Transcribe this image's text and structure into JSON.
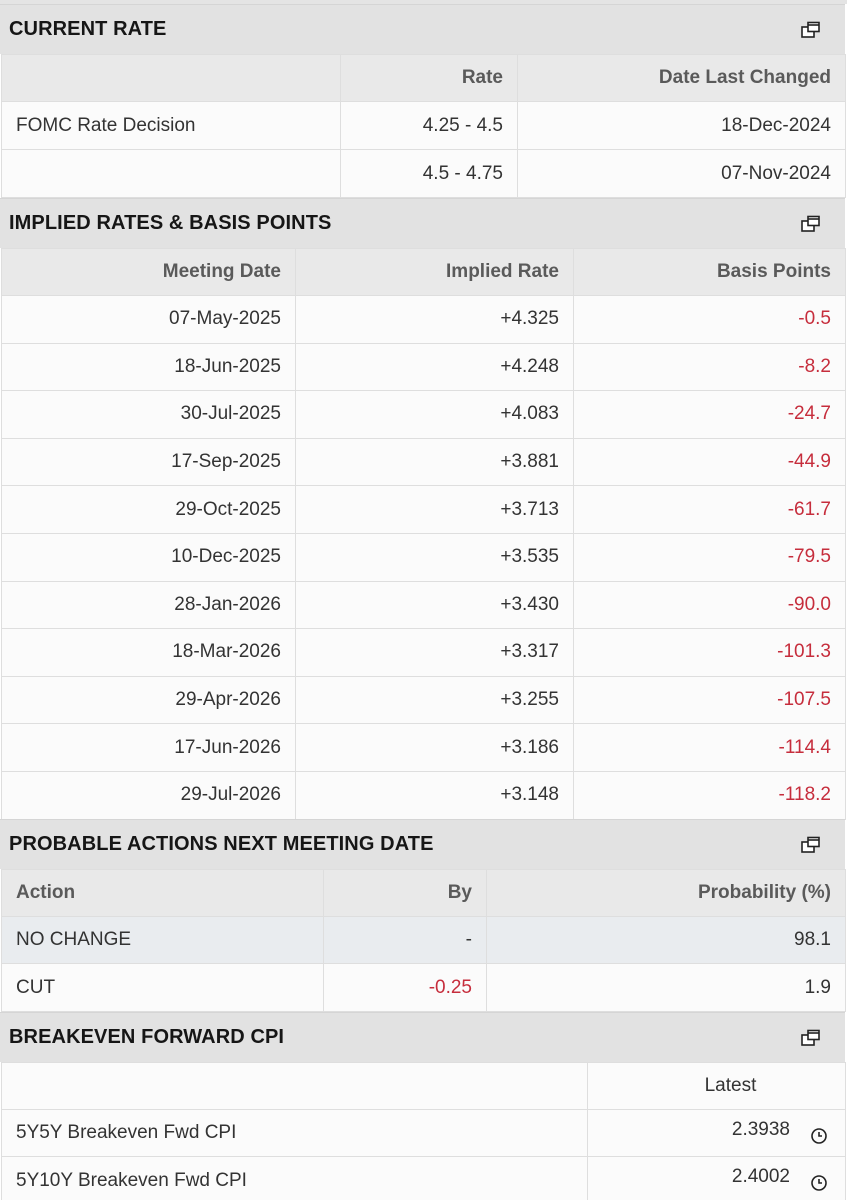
{
  "current_rate": {
    "title": "CURRENT RATE",
    "headers": [
      "",
      "Rate",
      "Date Last Changed"
    ],
    "rows": [
      {
        "label": "FOMC Rate Decision",
        "rate": "4.25 - 4.5",
        "date": "18-Dec-2024"
      },
      {
        "label": "",
        "rate": "4.5 - 4.75",
        "date": "07-Nov-2024"
      }
    ]
  },
  "implied_rates": {
    "title": "IMPLIED RATES & BASIS POINTS",
    "headers": [
      "Meeting Date",
      "Implied Rate",
      "Basis Points"
    ],
    "rows": [
      {
        "date": "07-May-2025",
        "rate": "+4.325",
        "bp": "-0.5"
      },
      {
        "date": "18-Jun-2025",
        "rate": "+4.248",
        "bp": "-8.2"
      },
      {
        "date": "30-Jul-2025",
        "rate": "+4.083",
        "bp": "-24.7"
      },
      {
        "date": "17-Sep-2025",
        "rate": "+3.881",
        "bp": "-44.9"
      },
      {
        "date": "29-Oct-2025",
        "rate": "+3.713",
        "bp": "-61.7"
      },
      {
        "date": "10-Dec-2025",
        "rate": "+3.535",
        "bp": "-79.5"
      },
      {
        "date": "28-Jan-2026",
        "rate": "+3.430",
        "bp": "-90.0"
      },
      {
        "date": "18-Mar-2026",
        "rate": "+3.317",
        "bp": "-101.3"
      },
      {
        "date": "29-Apr-2026",
        "rate": "+3.255",
        "bp": "-107.5"
      },
      {
        "date": "17-Jun-2026",
        "rate": "+3.186",
        "bp": "-114.4"
      },
      {
        "date": "29-Jul-2026",
        "rate": "+3.148",
        "bp": "-118.2"
      }
    ]
  },
  "probable_actions": {
    "title": "PROBABLE ACTIONS NEXT MEETING DATE",
    "headers": [
      "Action",
      "By",
      "Probability (%)"
    ],
    "rows": [
      {
        "action": "NO CHANGE",
        "by": "-",
        "prob": "98.1"
      },
      {
        "action": "CUT",
        "by": "-0.25",
        "prob": "1.9"
      }
    ]
  },
  "breakeven_cpi": {
    "title": "BREAKEVEN FORWARD CPI",
    "headers": [
      "",
      "Latest"
    ],
    "rows": [
      {
        "label": "5Y5Y Breakeven Fwd CPI",
        "value": "2.3938"
      },
      {
        "label": "5Y10Y Breakeven Fwd CPI",
        "value": "2.4002"
      }
    ]
  },
  "icons": {
    "section_action": "popout-window-icon",
    "row_action": "clock-icon"
  },
  "colors": {
    "negative": "#c62d3c",
    "header_bg": "#e2e2e2"
  }
}
